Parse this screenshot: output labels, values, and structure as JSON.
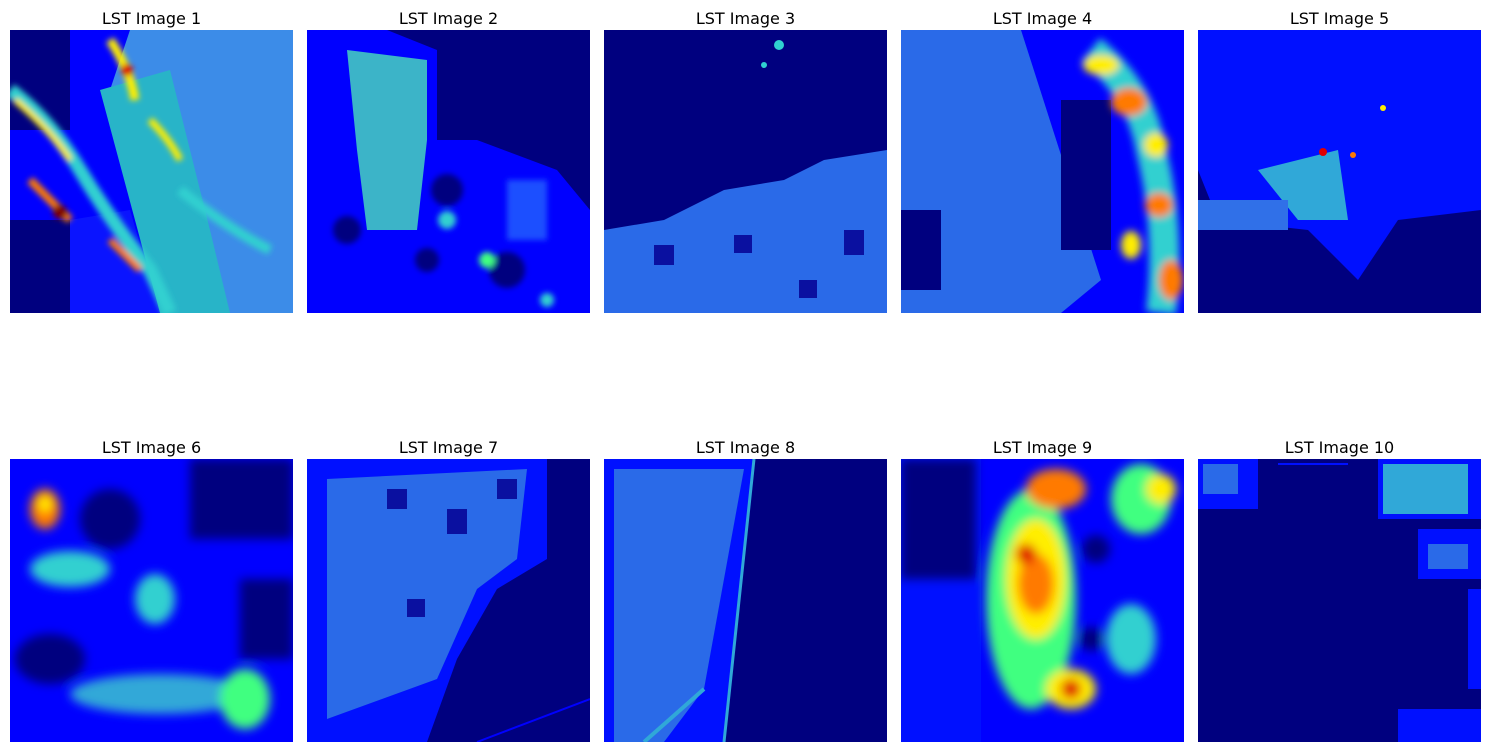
{
  "figure": {
    "panels": [
      {
        "title": "LST Image 1",
        "colormap": "jet"
      },
      {
        "title": "LST Image 2",
        "colormap": "jet"
      },
      {
        "title": "LST Image 3",
        "colormap": "jet"
      },
      {
        "title": "LST Image 4",
        "colormap": "jet"
      },
      {
        "title": "LST Image 5",
        "colormap": "jet"
      },
      {
        "title": "LST Image 6",
        "colormap": "jet"
      },
      {
        "title": "LST Image 7",
        "colormap": "jet"
      },
      {
        "title": "LST Image 8",
        "colormap": "jet"
      },
      {
        "title": "LST Image 9",
        "colormap": "jet"
      },
      {
        "title": "LST Image 10",
        "colormap": "jet"
      }
    ]
  },
  "colors": {
    "jet_dark_blue": "#00007f",
    "jet_blue": "#0000ff",
    "jet_mid_blue": "#0050ff",
    "jet_cyan_blue": "#1fa0e0",
    "jet_cyan": "#30d0d0",
    "jet_green": "#40ff80",
    "jet_yellow": "#ffee00",
    "jet_orange": "#ff7a00",
    "jet_red": "#e00000",
    "jet_dark_red": "#800000"
  }
}
